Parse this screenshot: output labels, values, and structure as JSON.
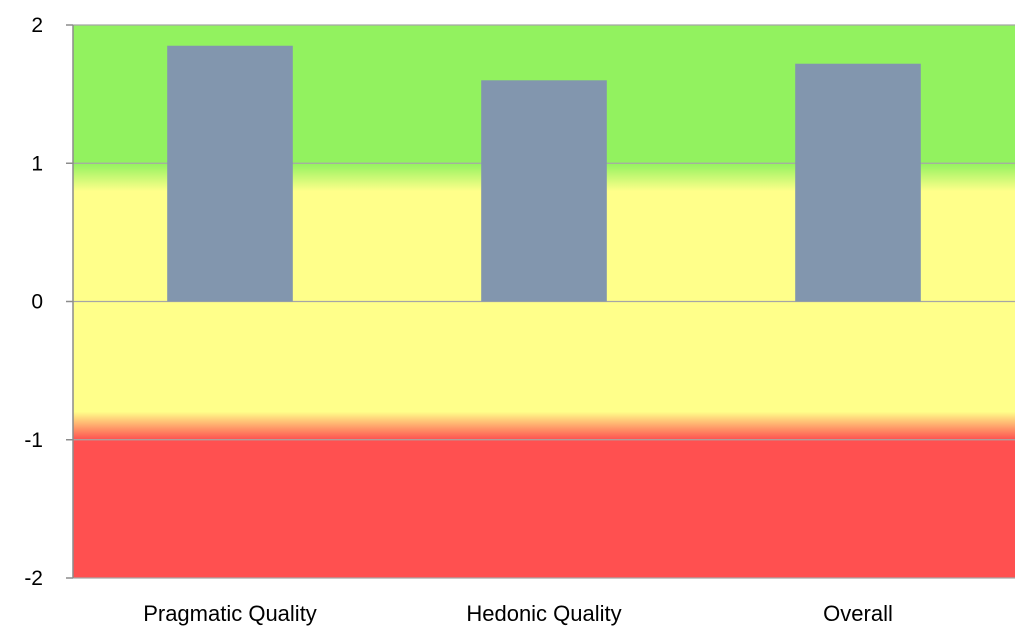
{
  "chart_data": {
    "type": "bar",
    "categories": [
      "Pragmatic Quality",
      "Hedonic Quality",
      "Overall"
    ],
    "values": [
      1.85,
      1.6,
      1.72
    ],
    "ylim": [
      -2,
      2
    ],
    "yticks": [
      2,
      1,
      0,
      -1,
      -2
    ],
    "ytick_labels": [
      "2",
      "1",
      "0",
      "-1",
      "-2"
    ],
    "title": "",
    "xlabel": "",
    "ylabel": "",
    "grid": true,
    "legend": "none",
    "bands": [
      {
        "from": 1,
        "to": 2,
        "color": "#92f25f"
      },
      {
        "from": -1,
        "to": 1,
        "color": "#ffff8a"
      },
      {
        "from": -2,
        "to": -1,
        "color": "#ff5050"
      }
    ],
    "colors": {
      "bar": "#8296ae",
      "grid": "#a6a6a6",
      "axis": "#8c8c8c"
    }
  }
}
